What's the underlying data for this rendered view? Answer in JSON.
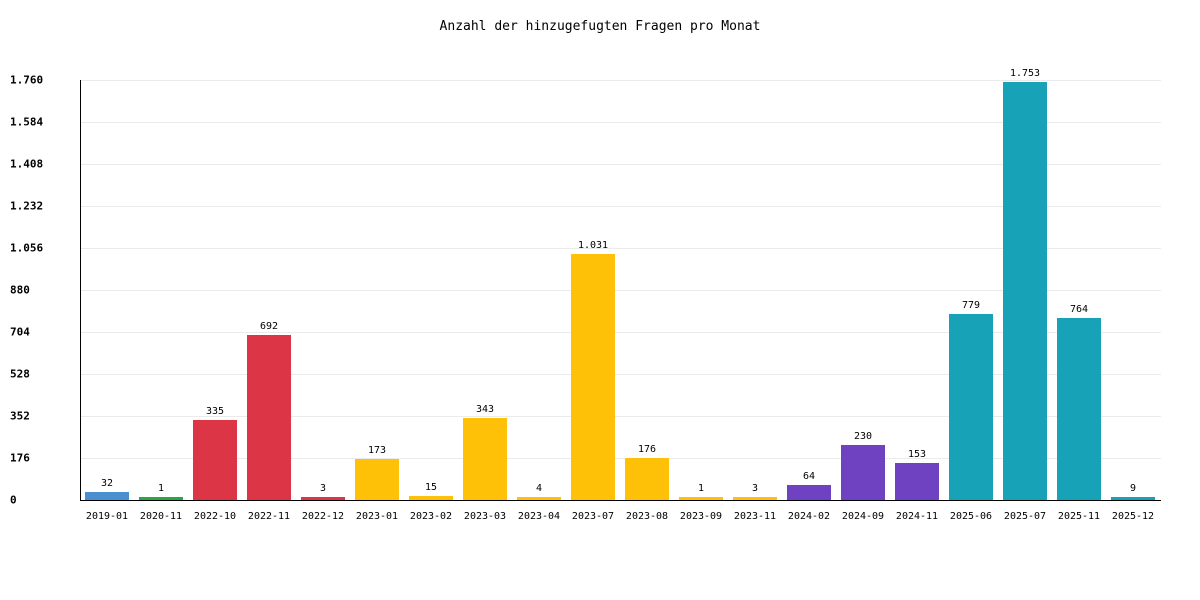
{
  "chart_data": {
    "type": "bar",
    "title": "Anzahl der hinzugefugten Fragen pro Monat",
    "xlabel": "",
    "ylabel": "",
    "ylim": [
      0,
      1760
    ],
    "yticks": [
      "0",
      "176",
      "352",
      "528",
      "704",
      "880",
      "1.056",
      "1.232",
      "1.408",
      "1.584",
      "1.760"
    ],
    "ytick_values": [
      0,
      176,
      352,
      528,
      704,
      880,
      1056,
      1232,
      1408,
      1584,
      1760
    ],
    "grid": true,
    "legend": false,
    "categories": [
      "2019-01",
      "2020-11",
      "2022-10",
      "2022-11",
      "2022-12",
      "2023-01",
      "2023-02",
      "2023-03",
      "2023-04",
      "2023-07",
      "2023-08",
      "2023-09",
      "2023-11",
      "2024-02",
      "2024-09",
      "2024-11",
      "2025-06",
      "2025-07",
      "2025-11",
      "2025-12"
    ],
    "values": [
      32,
      1,
      335,
      692,
      3,
      173,
      15,
      343,
      4,
      1031,
      176,
      1,
      3,
      64,
      230,
      153,
      779,
      1753,
      764,
      9
    ],
    "value_labels": [
      "32",
      "1",
      "335",
      "692",
      "3",
      "173",
      "15",
      "343",
      "4",
      "1.031",
      "176",
      "1",
      "3",
      "64",
      "230",
      "153",
      "779",
      "1.753",
      "764",
      "9"
    ],
    "colors": [
      "#4a90d0",
      "#28a745",
      "#dc3545",
      "#dc3545",
      "#dc3545",
      "#ffc107",
      "#ffc107",
      "#ffc107",
      "#ffc107",
      "#ffc107",
      "#ffc107",
      "#ffc107",
      "#ffc107",
      "#6f42c1",
      "#6f42c1",
      "#6f42c1",
      "#17a2b8",
      "#17a2b8",
      "#17a2b8",
      "#17a2b8"
    ]
  }
}
